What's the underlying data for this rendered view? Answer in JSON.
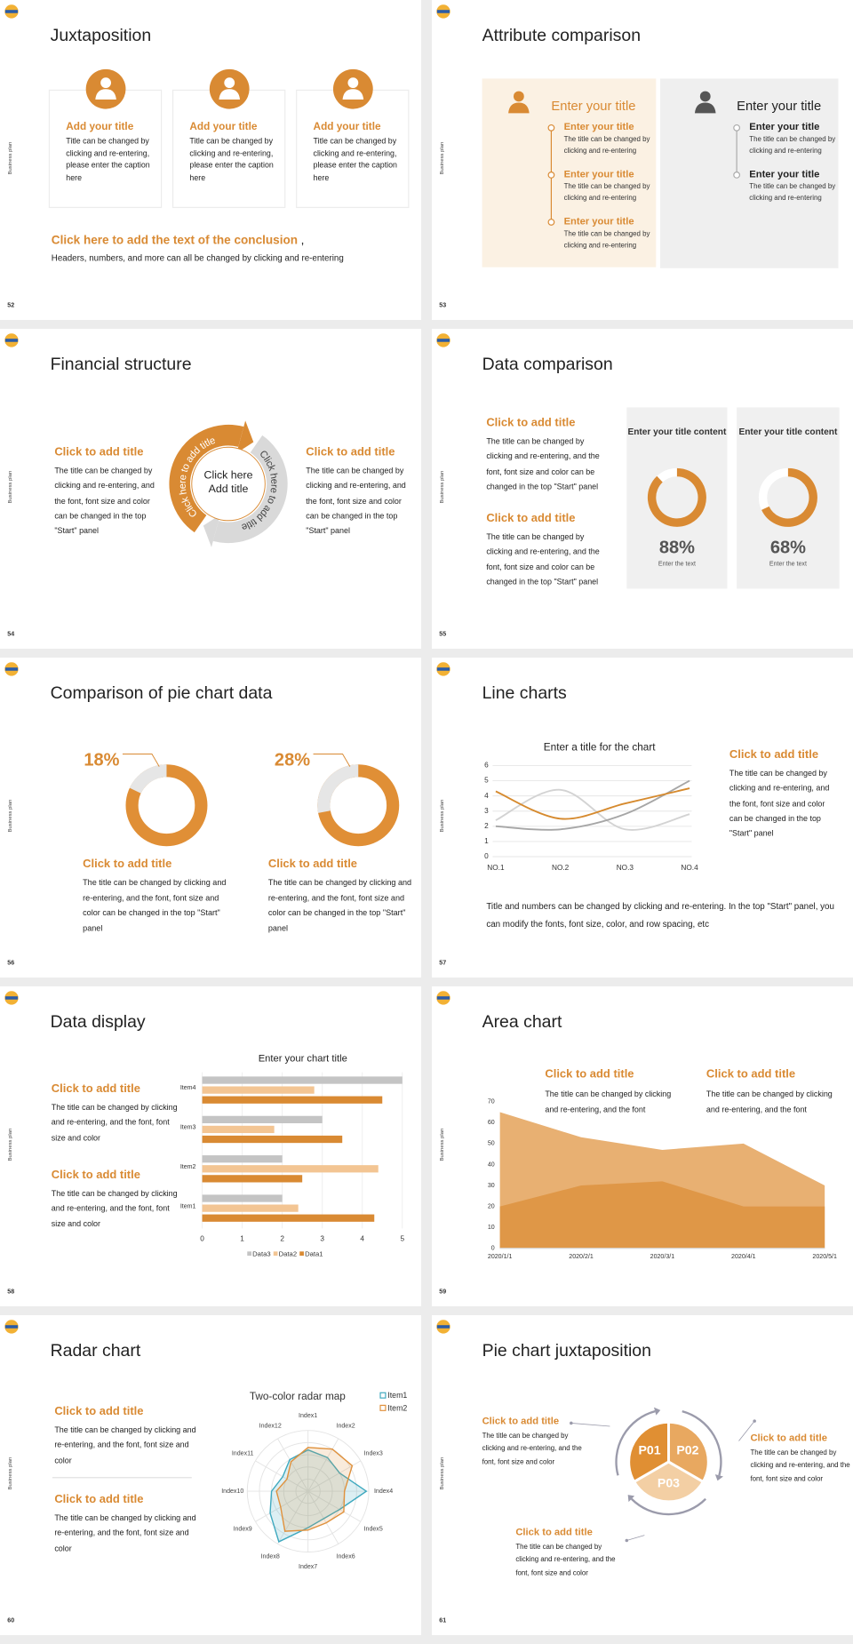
{
  "side_label": "Business plan",
  "slides": [
    {
      "number": "52",
      "title": "Juxtaposition",
      "items": [
        {
          "title": "Add your title",
          "text": "Title can be changed by clicking and re-entering, please enter the caption here"
        },
        {
          "title": "Add your title",
          "text": "Title can be changed by clicking and re-entering, please enter the caption here"
        },
        {
          "title": "Add your title",
          "text": "Title can be changed by clicking and re-entering, please enter the caption here"
        }
      ],
      "conclusion": {
        "title": "Click here to add the text of the conclusion",
        "suffix": ",",
        "text": "Headers, numbers, and more can all be changed by clicking and re-entering"
      }
    },
    {
      "number": "53",
      "title": "Attribute comparison",
      "panels": [
        {
          "title": "Enter your title",
          "items": [
            {
              "title": "Enter your title",
              "text": "The title can be changed by clicking and re-entering"
            },
            {
              "title": "Enter your title",
              "text": "The title can be changed by clicking and re-entering"
            },
            {
              "title": "Enter your title",
              "text": "The title can be changed by clicking and re-entering"
            }
          ]
        },
        {
          "title": "Enter your title",
          "items": [
            {
              "title": "Enter your title",
              "text": "The title can be changed by clicking and re-entering"
            },
            {
              "title": "Enter your title",
              "text": "The title can be changed by clicking and re-entering"
            }
          ]
        }
      ]
    },
    {
      "number": "54",
      "title": "Financial structure",
      "left": {
        "title": "Click to add title",
        "text": "The title can be changed by clicking and re-entering, and the font, font size and color can be changed in the top \"Start\" panel"
      },
      "right": {
        "title": "Click to add title",
        "text": "The title can be changed by clicking and re-entering, and the font, font size and color can be changed in the top \"Start\" panel"
      },
      "cycle": {
        "center": "Click here Add title",
        "arcs": [
          "Click here to add title",
          "Click here to add title"
        ]
      }
    },
    {
      "number": "55",
      "title": "Data comparison",
      "blocks": [
        {
          "title": "Click to add title",
          "text": "The title can be changed by clicking and re-entering, and the font, font size and color can be changed in the top \"Start\" panel"
        },
        {
          "title": "Click to add title",
          "text": "The title can be changed by clicking and re-entering, and the font, font size and color can be changed in the top \"Start\" panel"
        }
      ],
      "cards": [
        {
          "title": "Enter your title content",
          "value": 88,
          "label": "88%",
          "caption": "Enter the text"
        },
        {
          "title": "Enter your title content",
          "value": 68,
          "label": "68%",
          "caption": "Enter the text"
        }
      ]
    },
    {
      "number": "56",
      "title": "Comparison of pie chart data",
      "items": [
        {
          "value": 18,
          "label": "18%",
          "title": "Click to add title",
          "text": "The title can be changed by clicking and re-entering, and the font, font size and color can be changed in the top \"Start\" panel"
        },
        {
          "value": 28,
          "label": "28%",
          "title": "Click to add title",
          "text": "The title can be changed by clicking and re-entering, and the font, font size and color can be changed in the top \"Start\" panel"
        }
      ]
    },
    {
      "number": "57",
      "title": "Line charts",
      "chart": {
        "type": "line",
        "title": "Enter a title for the chart",
        "categories": [
          "NO.1",
          "NO.2",
          "NO.3",
          "NO.4"
        ],
        "series": [
          {
            "color": "#d68a2e",
            "values": [
              4.3,
              2.5,
              3.5,
              4.5
            ]
          },
          {
            "color": "#a6a6a6",
            "values": [
              2,
              1.8,
              2.8,
              5
            ]
          },
          {
            "color": "#d3d3d3",
            "values": [
              2.4,
              4.4,
              1.8,
              2.8
            ]
          }
        ],
        "ylim": [
          0,
          6
        ],
        "yticks": [
          0,
          1,
          2,
          3,
          4,
          5,
          6
        ],
        "grid": true
      },
      "block": {
        "title": "Click to add title",
        "text": "The title can be changed by clicking and re-entering, and the font, font size and color can be changed in the top \"Start\" panel"
      },
      "note": "Title and numbers can be changed by clicking and re-entering. In the top \"Start\" panel, you can modify the fonts, font size, color, and row spacing, etc"
    },
    {
      "number": "58",
      "title": "Data display",
      "blocks": [
        {
          "title": "Click to add title",
          "text": "The title can be changed by clicking and re-entering, and the font, font size and color"
        },
        {
          "title": "Click to add title",
          "text": "The title can be changed by clicking and re-entering, and the font, font size and color"
        }
      ],
      "chart": {
        "type": "bar",
        "orientation": "horizontal",
        "title": "Enter your chart title",
        "categories": [
          "Item1",
          "Item2",
          "Item3",
          "Item4"
        ],
        "series": [
          {
            "name": "Data1",
            "color": "#d98a33",
            "values": [
              4.3,
              2.5,
              3.5,
              4.5
            ]
          },
          {
            "name": "Data2",
            "color": "#f3c593",
            "values": [
              2.4,
              4.4,
              1.8,
              2.8
            ]
          },
          {
            "name": "Data3",
            "color": "#c4c4c4",
            "values": [
              2,
              2,
              3,
              5
            ]
          }
        ],
        "xlim": [
          0,
          5
        ],
        "xticks": [
          0,
          1,
          2,
          3,
          4,
          5
        ],
        "grid": true,
        "legend": "bottom"
      }
    },
    {
      "number": "59",
      "title": "Area chart",
      "blocks": [
        {
          "title": "Click to add title",
          "text": "The title can be changed by clicking and re-entering, and the font"
        },
        {
          "title": "Click to add title",
          "text": "The title can be changed by clicking and re-entering, and the font"
        }
      ],
      "chart": {
        "type": "area",
        "x": [
          "2020/1/1",
          "2020/2/1",
          "2020/3/1",
          "2020/4/1",
          "2020/5/1"
        ],
        "series": [
          {
            "color": "#e8b072",
            "values": [
              65,
              53,
              47,
              50,
              30
            ]
          },
          {
            "color": "#df9747",
            "values": [
              20,
              30,
              32,
              20,
              20
            ]
          }
        ],
        "ylim": [
          0,
          70
        ],
        "yticks": [
          0,
          10,
          20,
          30,
          40,
          50,
          60,
          70
        ]
      }
    },
    {
      "number": "60",
      "title": "Radar chart",
      "blocks": [
        {
          "title": "Click to add title",
          "text": "The title can be changed by clicking and re-entering, and the font, font size and color"
        },
        {
          "title": "Click to add title",
          "text": "The title can be changed by clicking and re-entering, and the font, font size and color"
        }
      ],
      "chart": {
        "type": "radar",
        "title": "Two-color radar map",
        "categories": [
          "Index1",
          "Index2",
          "Index3",
          "Index4",
          "Index5",
          "Index6",
          "Index7",
          "Index8",
          "Index9",
          "Index10",
          "Index11",
          "Index12"
        ],
        "series": [
          {
            "name": "Item1",
            "color": "#3fa9bf",
            "values": [
              3.4,
              3.2,
              3,
              4.8,
              3,
              2.6,
              3,
              4.8,
              3.6,
              3,
              2.4,
              3
            ]
          },
          {
            "name": "Item2",
            "color": "#e0913c",
            "values": [
              3.6,
              4,
              4.2,
              3,
              3.4,
              3,
              3.2,
              3.8,
              2.6,
              2.6,
              2,
              2.8
            ]
          }
        ],
        "rlim": [
          0,
          5
        ],
        "rticks": [
          1,
          2,
          3,
          4,
          5
        ],
        "legend": "top-right"
      }
    },
    {
      "number": "61",
      "title": "Pie chart juxtaposition",
      "segments": [
        "P01",
        "P02",
        "P03"
      ],
      "blocks": [
        {
          "title": "Click to add title",
          "text": "The title can be changed by clicking and re-entering, and the font, font size and color"
        },
        {
          "title": "Click to add title",
          "text": "The title can be changed by clicking and re-entering, and the font, font size and color"
        },
        {
          "title": "Click to add title",
          "text": "The title can be changed by clicking and re-entering, and the font, font size and color"
        }
      ]
    }
  ]
}
